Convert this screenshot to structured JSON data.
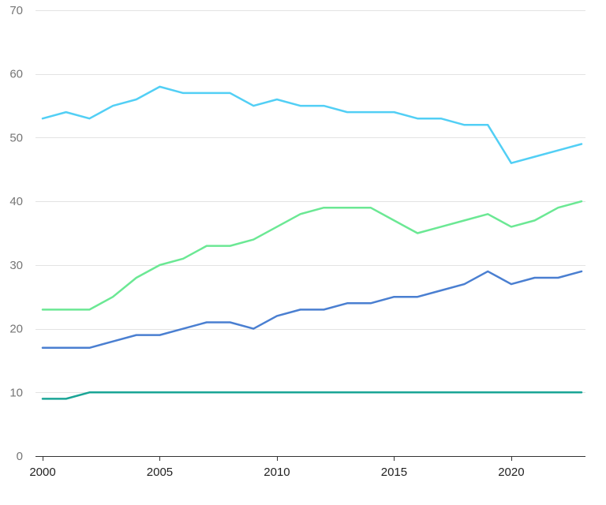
{
  "chart_data": {
    "type": "line",
    "title": "",
    "xlabel": "",
    "ylabel": "",
    "x": [
      2000,
      2001,
      2002,
      2003,
      2004,
      2005,
      2006,
      2007,
      2008,
      2009,
      2010,
      2011,
      2012,
      2013,
      2014,
      2015,
      2016,
      2017,
      2018,
      2019,
      2020,
      2021,
      2022,
      2023
    ],
    "xlim": [
      2000,
      2023
    ],
    "ylim": [
      0,
      70
    ],
    "x_ticks": [
      2000,
      2005,
      2010,
      2015,
      2020
    ],
    "y_ticks": [
      0,
      10,
      20,
      30,
      40,
      50,
      60,
      70
    ],
    "grid": "horizontal",
    "legend": "none",
    "series": [
      {
        "color": "#52cff5",
        "values": [
          53,
          54,
          53,
          55,
          56,
          58,
          57,
          57,
          57,
          55,
          56,
          55,
          55,
          54,
          54,
          54,
          53,
          53,
          52,
          52,
          46,
          47,
          48,
          49
        ]
      },
      {
        "color": "#6be894",
        "values": [
          23,
          23,
          23,
          25,
          28,
          30,
          31,
          33,
          33,
          34,
          36,
          38,
          39,
          39,
          39,
          37,
          35,
          36,
          37,
          38,
          36,
          37,
          39,
          40
        ]
      },
      {
        "color": "#4a7fd1",
        "values": [
          17,
          17,
          17,
          18,
          19,
          19,
          20,
          21,
          21,
          20,
          22,
          23,
          23,
          24,
          24,
          25,
          25,
          26,
          27,
          29,
          27,
          28,
          28,
          29
        ]
      },
      {
        "color": "#1aa596",
        "values": [
          9,
          9,
          10,
          10,
          10,
          10,
          10,
          10,
          10,
          10,
          10,
          10,
          10,
          10,
          10,
          10,
          10,
          10,
          10,
          10,
          10,
          10,
          10,
          10
        ]
      }
    ]
  }
}
